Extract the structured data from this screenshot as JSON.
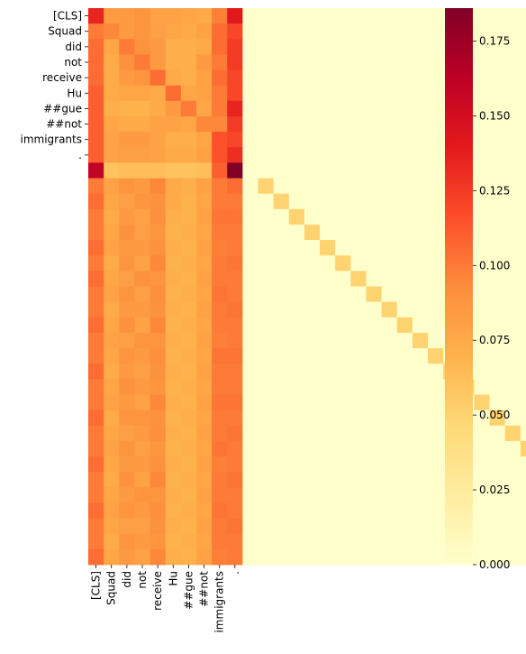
{
  "chart_data": {
    "type": "heatmap",
    "title": "",
    "xlabel": "",
    "ylabel": "",
    "row_labels": [
      "[CLS]",
      "Squad",
      "did",
      "not",
      "receive",
      "Hu",
      "##gue",
      "##not",
      "immigrants",
      "."
    ],
    "col_labels": [
      "[CLS]",
      "Squad",
      "did",
      "not",
      "receive",
      "Hu",
      "##gue",
      "##not",
      "immigrants",
      "."
    ],
    "n_rows": 36,
    "n_cols": 36,
    "colormap": [
      "#ffffcc",
      "#ffeda0",
      "#fed976",
      "#feb24c",
      "#fd8d3c",
      "#fc4e2a",
      "#e31a1c",
      "#bd0026",
      "#800026"
    ],
    "color_range": [
      0.0,
      0.186
    ],
    "colorbar_ticks": [
      "0.000",
      "0.025",
      "0.050",
      "0.075",
      "0.100",
      "0.125",
      "0.150",
      "0.175"
    ],
    "text_rows": [
      [
        0.135,
        0.085,
        0.085,
        0.088,
        0.08,
        0.08,
        0.078,
        0.075,
        0.098,
        0.14
      ],
      [
        0.1,
        0.095,
        0.085,
        0.088,
        0.082,
        0.078,
        0.075,
        0.08,
        0.105,
        0.12
      ],
      [
        0.105,
        0.078,
        0.1,
        0.09,
        0.085,
        0.072,
        0.072,
        0.075,
        0.105,
        0.125
      ],
      [
        0.105,
        0.075,
        0.09,
        0.1,
        0.085,
        0.072,
        0.072,
        0.085,
        0.1,
        0.125
      ],
      [
        0.105,
        0.075,
        0.085,
        0.088,
        0.105,
        0.075,
        0.072,
        0.08,
        0.105,
        0.12
      ],
      [
        0.11,
        0.075,
        0.078,
        0.078,
        0.075,
        0.105,
        0.078,
        0.08,
        0.1,
        0.12
      ],
      [
        0.11,
        0.072,
        0.07,
        0.07,
        0.075,
        0.085,
        0.1,
        0.078,
        0.1,
        0.135
      ],
      [
        0.11,
        0.078,
        0.075,
        0.075,
        0.08,
        0.08,
        0.078,
        0.095,
        0.095,
        0.125
      ],
      [
        0.11,
        0.08,
        0.085,
        0.085,
        0.08,
        0.072,
        0.072,
        0.078,
        0.115,
        0.12
      ],
      [
        0.11,
        0.08,
        0.082,
        0.082,
        0.08,
        0.075,
        0.075,
        0.08,
        0.115,
        0.13
      ],
      [
        0.16,
        0.06,
        0.062,
        0.062,
        0.062,
        0.06,
        0.06,
        0.062,
        0.11,
        0.186
      ]
    ],
    "pad_rows_first10": [
      [
        0.1,
        0.08,
        0.088,
        0.085,
        0.095,
        0.075,
        0.072,
        0.08,
        0.1,
        0.105
      ],
      [
        0.105,
        0.078,
        0.082,
        0.088,
        0.09,
        0.075,
        0.07,
        0.078,
        0.1,
        0.1
      ],
      [
        0.1,
        0.075,
        0.085,
        0.08,
        0.092,
        0.072,
        0.07,
        0.08,
        0.102,
        0.102
      ],
      [
        0.1,
        0.078,
        0.09,
        0.082,
        0.088,
        0.07,
        0.072,
        0.078,
        0.1,
        0.1
      ],
      [
        0.105,
        0.08,
        0.085,
        0.085,
        0.09,
        0.072,
        0.07,
        0.08,
        0.098,
        0.1
      ],
      [
        0.1,
        0.075,
        0.088,
        0.08,
        0.095,
        0.07,
        0.072,
        0.078,
        0.1,
        0.102
      ],
      [
        0.105,
        0.078,
        0.082,
        0.09,
        0.088,
        0.072,
        0.07,
        0.08,
        0.1,
        0.1
      ],
      [
        0.1,
        0.08,
        0.088,
        0.082,
        0.092,
        0.07,
        0.072,
        0.078,
        0.102,
        0.1
      ],
      [
        0.1,
        0.075,
        0.085,
        0.085,
        0.09,
        0.072,
        0.07,
        0.08,
        0.1,
        0.102
      ],
      [
        0.105,
        0.078,
        0.09,
        0.08,
        0.095,
        0.07,
        0.072,
        0.078,
        0.1,
        0.1
      ],
      [
        0.1,
        0.08,
        0.082,
        0.088,
        0.088,
        0.072,
        0.07,
        0.08,
        0.098,
        0.1
      ],
      [
        0.1,
        0.078,
        0.088,
        0.085,
        0.092,
        0.07,
        0.072,
        0.078,
        0.102,
        0.102
      ],
      [
        0.105,
        0.075,
        0.085,
        0.082,
        0.09,
        0.072,
        0.07,
        0.08,
        0.1,
        0.1
      ],
      [
        0.1,
        0.078,
        0.09,
        0.085,
        0.088,
        0.07,
        0.072,
        0.078,
        0.1,
        0.1
      ],
      [
        0.1,
        0.08,
        0.085,
        0.08,
        0.095,
        0.072,
        0.07,
        0.08,
        0.102,
        0.102
      ],
      [
        0.105,
        0.075,
        0.088,
        0.088,
        0.09,
        0.07,
        0.072,
        0.078,
        0.1,
        0.1
      ],
      [
        0.1,
        0.078,
        0.082,
        0.085,
        0.092,
        0.072,
        0.07,
        0.08,
        0.1,
        0.102
      ],
      [
        0.1,
        0.08,
        0.088,
        0.082,
        0.088,
        0.07,
        0.072,
        0.078,
        0.102,
        0.1
      ],
      [
        0.105,
        0.078,
        0.085,
        0.085,
        0.09,
        0.072,
        0.07,
        0.08,
        0.098,
        0.1
      ],
      [
        0.1,
        0.075,
        0.09,
        0.08,
        0.095,
        0.07,
        0.072,
        0.078,
        0.1,
        0.102
      ],
      [
        0.1,
        0.078,
        0.085,
        0.088,
        0.088,
        0.072,
        0.07,
        0.08,
        0.1,
        0.1
      ],
      [
        0.105,
        0.08,
        0.088,
        0.085,
        0.092,
        0.07,
        0.072,
        0.078,
        0.102,
        0.1
      ],
      [
        0.1,
        0.078,
        0.082,
        0.082,
        0.09,
        0.072,
        0.07,
        0.08,
        0.1,
        0.102
      ],
      [
        0.1,
        0.075,
        0.088,
        0.085,
        0.088,
        0.07,
        0.072,
        0.078,
        0.1,
        0.1
      ],
      [
        0.105,
        0.078,
        0.085,
        0.08,
        0.095,
        0.072,
        0.07,
        0.08,
        0.098,
        0.1
      ]
    ],
    "pad_rows_other_cols": 0.0,
    "pad_diagonal": 0.05
  }
}
